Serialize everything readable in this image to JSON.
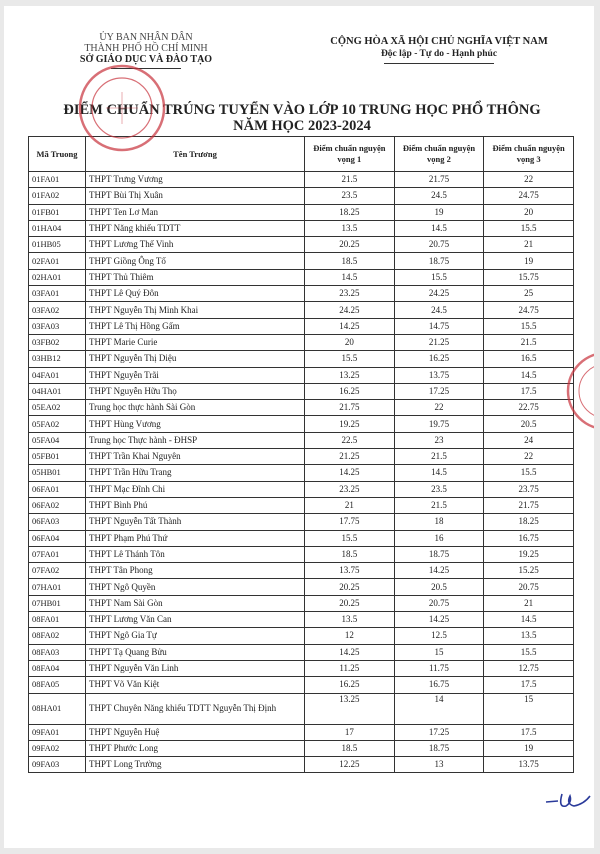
{
  "header_left": {
    "line1": "ỦY BAN NHÂN DÂN",
    "line2": "THÀNH PHỐ HỒ CHÍ MINH",
    "line3": "SỞ GIÁO DỤC VÀ ĐÀO TẠO"
  },
  "header_right": {
    "line1": "CỘNG HÒA XÃ HỘI CHỦ NGHĨA VIỆT NAM",
    "line2": "Độc lập - Tự do - Hạnh phúc"
  },
  "title": {
    "line1": "ĐIỂM CHUẨN TRÚNG TUYỂN VÀO LỚP 10 TRUNG HỌC PHỔ THÔNG",
    "line2": "NĂM HỌC 2023-2024"
  },
  "stamp": {
    "text": "SỞ GIÁO DỤC ĐÀO TẠO",
    "color": "#c8323c"
  },
  "table": {
    "headers": [
      "Mã Truong",
      "Tên Trương",
      "Điểm chuẩn nguyện vọng 1",
      "Điểm chuẩn nguyện vọng 2",
      "Điểm chuẩn nguyện vọng 3"
    ],
    "rows": [
      [
        "01FA01",
        "THPT Trưng Vương",
        "21.5",
        "21.75",
        "22"
      ],
      [
        "01FA02",
        "THPT Bùi Thị Xuân",
        "23.5",
        "24.5",
        "24.75"
      ],
      [
        "01FB01",
        "THPT Ten Lơ Man",
        "18.25",
        "19",
        "20"
      ],
      [
        "01HA04",
        "THPT Năng khiếu TDTT",
        "13.5",
        "14.5",
        "15.5"
      ],
      [
        "01HB05",
        "THPT Lương Thế Vinh",
        "20.25",
        "20.75",
        "21"
      ],
      [
        "02FA01",
        "THPT Giồng Ông Tố",
        "18.5",
        "18.75",
        "19"
      ],
      [
        "02HA01",
        "THPT Thủ Thiêm",
        "14.5",
        "15.5",
        "15.75"
      ],
      [
        "03FA01",
        "THPT Lê Quý Đôn",
        "23.25",
        "24.25",
        "25"
      ],
      [
        "03FA02",
        "THPT Nguyễn Thị Minh Khai",
        "24.25",
        "24.5",
        "24.75"
      ],
      [
        "03FA03",
        "THPT Lê Thị Hồng Gấm",
        "14.25",
        "14.75",
        "15.5"
      ],
      [
        "03FB02",
        "THPT Marie Curie",
        "20",
        "21.25",
        "21.5"
      ],
      [
        "03HB12",
        "THPT Nguyễn Thị Diệu",
        "15.5",
        "16.25",
        "16.5"
      ],
      [
        "04FA01",
        "THPT Nguyễn Trãi",
        "13.25",
        "13.75",
        "14.5"
      ],
      [
        "04HA01",
        "THPT Nguyễn Hữu Thọ",
        "16.25",
        "17.25",
        "17.5"
      ],
      [
        "05EA02",
        "Trung học thực hành Sài Gòn",
        "21.75",
        "22",
        "22.75"
      ],
      [
        "05FA02",
        "THPT Hùng Vương",
        "19.25",
        "19.75",
        "20.5"
      ],
      [
        "05FA04",
        "Trung học Thực hành - ĐHSP",
        "22.5",
        "23",
        "24"
      ],
      [
        "05FB01",
        "THPT Trần Khai Nguyên",
        "21.25",
        "21.5",
        "22"
      ],
      [
        "05HB01",
        "THPT Trần Hữu Trang",
        "14.25",
        "14.5",
        "15.5"
      ],
      [
        "06FA01",
        "THPT Mạc Đĩnh Chi",
        "23.25",
        "23.5",
        "23.75"
      ],
      [
        "06FA02",
        "THPT Bình Phú",
        "21",
        "21.5",
        "21.75"
      ],
      [
        "06FA03",
        "THPT Nguyễn Tất Thành",
        "17.75",
        "18",
        "18.25"
      ],
      [
        "06FA04",
        "THPT Phạm Phú Thứ",
        "15.5",
        "16",
        "16.75"
      ],
      [
        "07FA01",
        "THPT Lê Thánh Tôn",
        "18.5",
        "18.75",
        "19.25"
      ],
      [
        "07FA02",
        "THPT Tân Phong",
        "13.75",
        "14.25",
        "15.25"
      ],
      [
        "07HA01",
        "THPT Ngô Quyền",
        "20.25",
        "20.5",
        "20.75"
      ],
      [
        "07HB01",
        "THPT Nam Sài Gòn",
        "20.25",
        "20.75",
        "21"
      ],
      [
        "08FA01",
        "THPT Lương Văn Can",
        "13.5",
        "14.25",
        "14.5"
      ],
      [
        "08FA02",
        "THPT Ngô Gia Tự",
        "12",
        "12.5",
        "13.5"
      ],
      [
        "08FA03",
        "THPT Tạ Quang Bửu",
        "14.25",
        "15",
        "15.5"
      ],
      [
        "08FA04",
        "THPT Nguyễn Văn Linh",
        "11.25",
        "11.75",
        "12.75"
      ],
      [
        "08FA05",
        "THPT Võ Văn Kiệt",
        "16.25",
        "16.75",
        "17.5"
      ],
      [
        "08HA01",
        "THPT Chuyên Năng khiếu TDTT Nguyễn Thị Định",
        "13.25",
        "14",
        "15"
      ],
      [
        "09FA01",
        "THPT Nguyễn Huệ",
        "17",
        "17.25",
        "17.5"
      ],
      [
        "09FA02",
        "THPT Phước Long",
        "18.5",
        "18.75",
        "19"
      ],
      [
        "09FA03",
        "THPT Long Trường",
        "12.25",
        "13",
        "13.75"
      ]
    ]
  }
}
